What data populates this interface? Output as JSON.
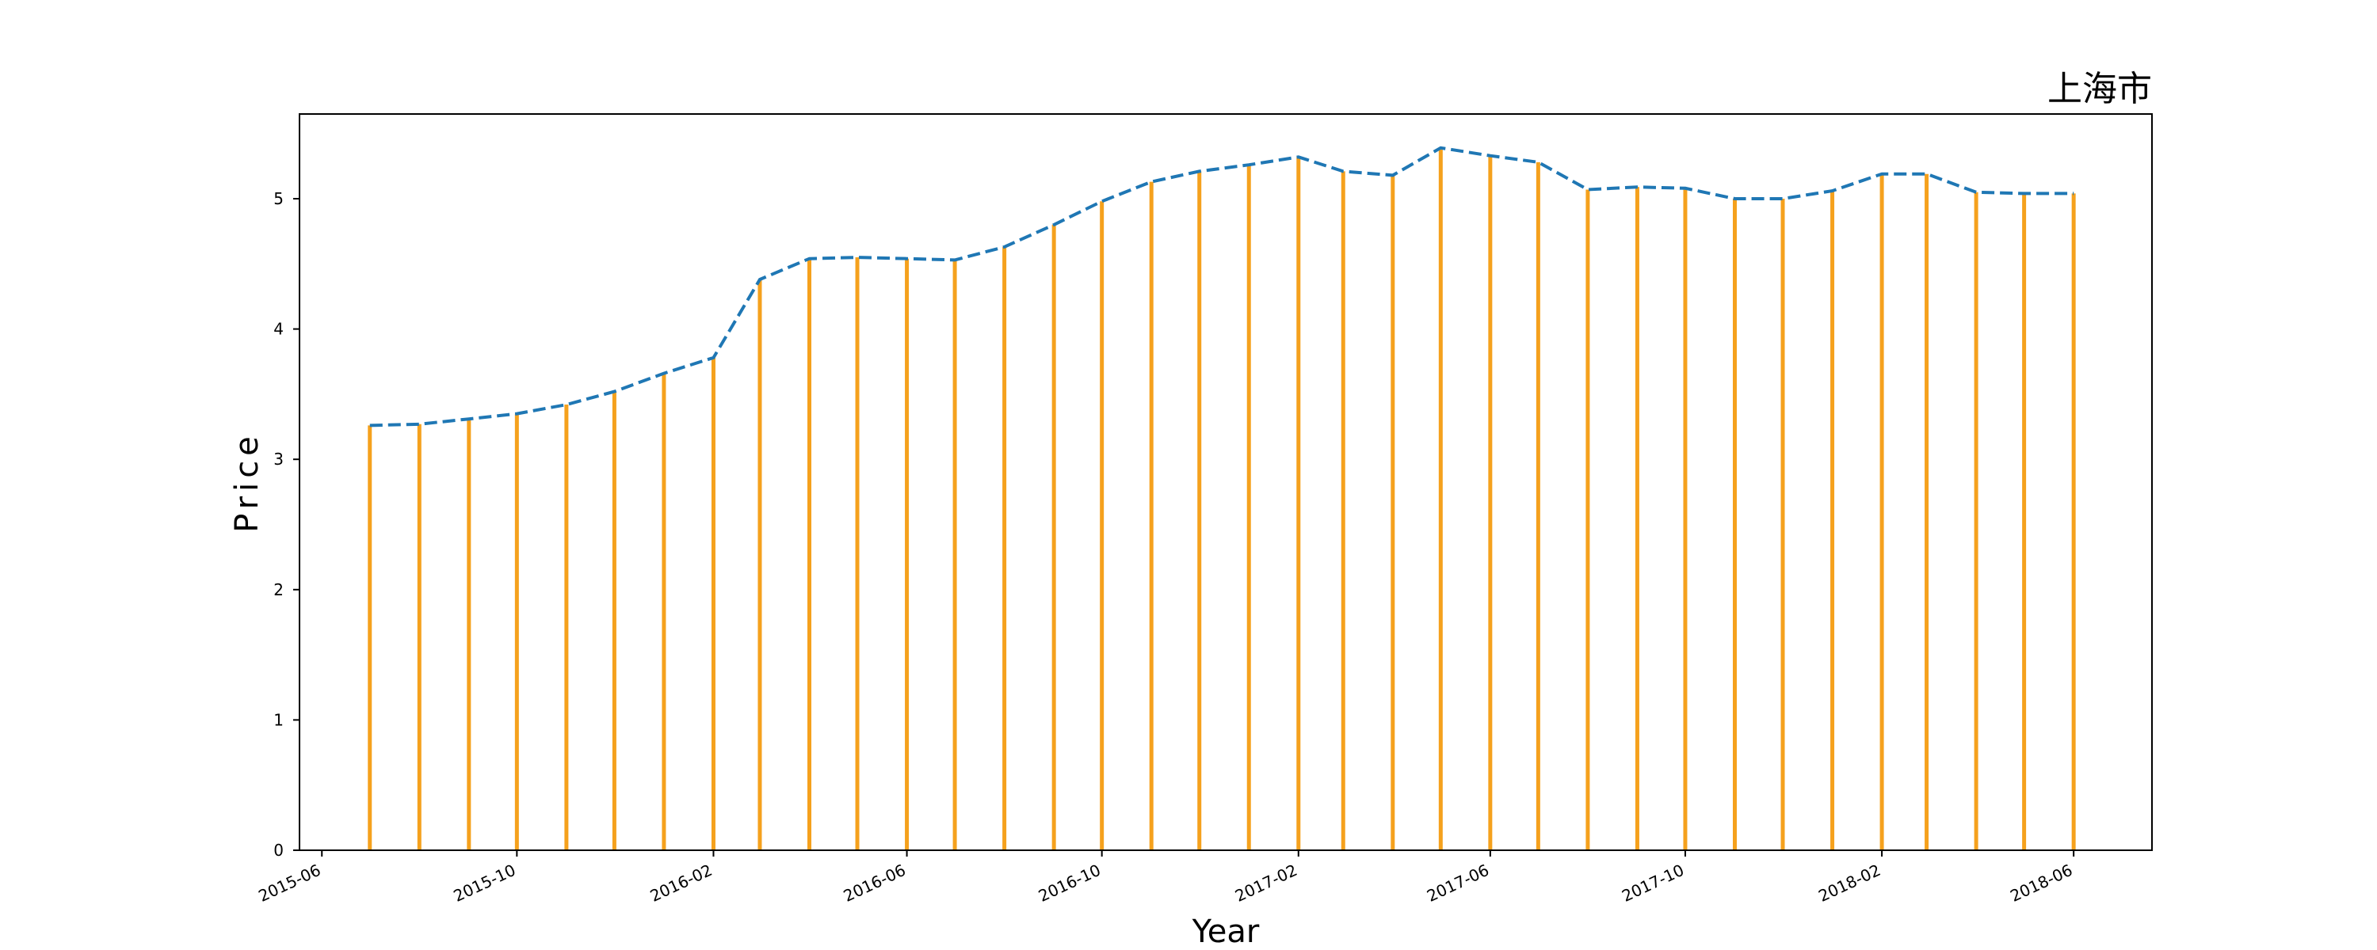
{
  "chart_data": {
    "type": "bar",
    "title": "上海市",
    "xlabel": "Year",
    "ylabel": "Price",
    "ylim": [
      0,
      5.65
    ],
    "xlim": [
      "2015-05-18",
      "2018-07-20"
    ],
    "yticks": [
      0,
      1,
      2,
      3,
      4,
      5
    ],
    "xticks": [
      "2015-06",
      "2015-10",
      "2016-02",
      "2016-06",
      "2016-10",
      "2017-02",
      "2017-06",
      "2017-10",
      "2018-02",
      "2018-06"
    ],
    "grid": false,
    "bar_color": "#f5a11d",
    "line_color": "#1f77b4",
    "series": [
      {
        "style": "bars+dashed-line",
        "x": [
          "2015-07",
          "2015-08",
          "2015-09",
          "2015-10",
          "2015-11",
          "2015-12",
          "2016-01",
          "2016-02",
          "2016-03",
          "2016-04",
          "2016-05",
          "2016-06",
          "2016-07",
          "2016-08",
          "2016-09",
          "2016-10",
          "2016-11",
          "2016-12",
          "2017-01",
          "2017-02",
          "2017-03",
          "2017-04",
          "2017-05",
          "2017-06",
          "2017-07",
          "2017-08",
          "2017-09",
          "2017-10",
          "2017-11",
          "2017-12",
          "2018-01",
          "2018-02",
          "2018-03",
          "2018-04",
          "2018-05",
          "2018-06"
        ],
        "values": [
          3.26,
          3.27,
          3.31,
          3.35,
          3.42,
          3.52,
          3.66,
          3.78,
          4.38,
          4.54,
          4.55,
          4.54,
          4.53,
          4.63,
          4.8,
          4.98,
          5.13,
          5.21,
          5.26,
          5.32,
          5.21,
          5.18,
          5.39,
          5.33,
          5.28,
          5.07,
          5.09,
          5.08,
          5.0,
          5.0,
          5.06,
          5.19,
          5.19,
          5.05,
          5.04,
          5.04
        ]
      }
    ]
  }
}
